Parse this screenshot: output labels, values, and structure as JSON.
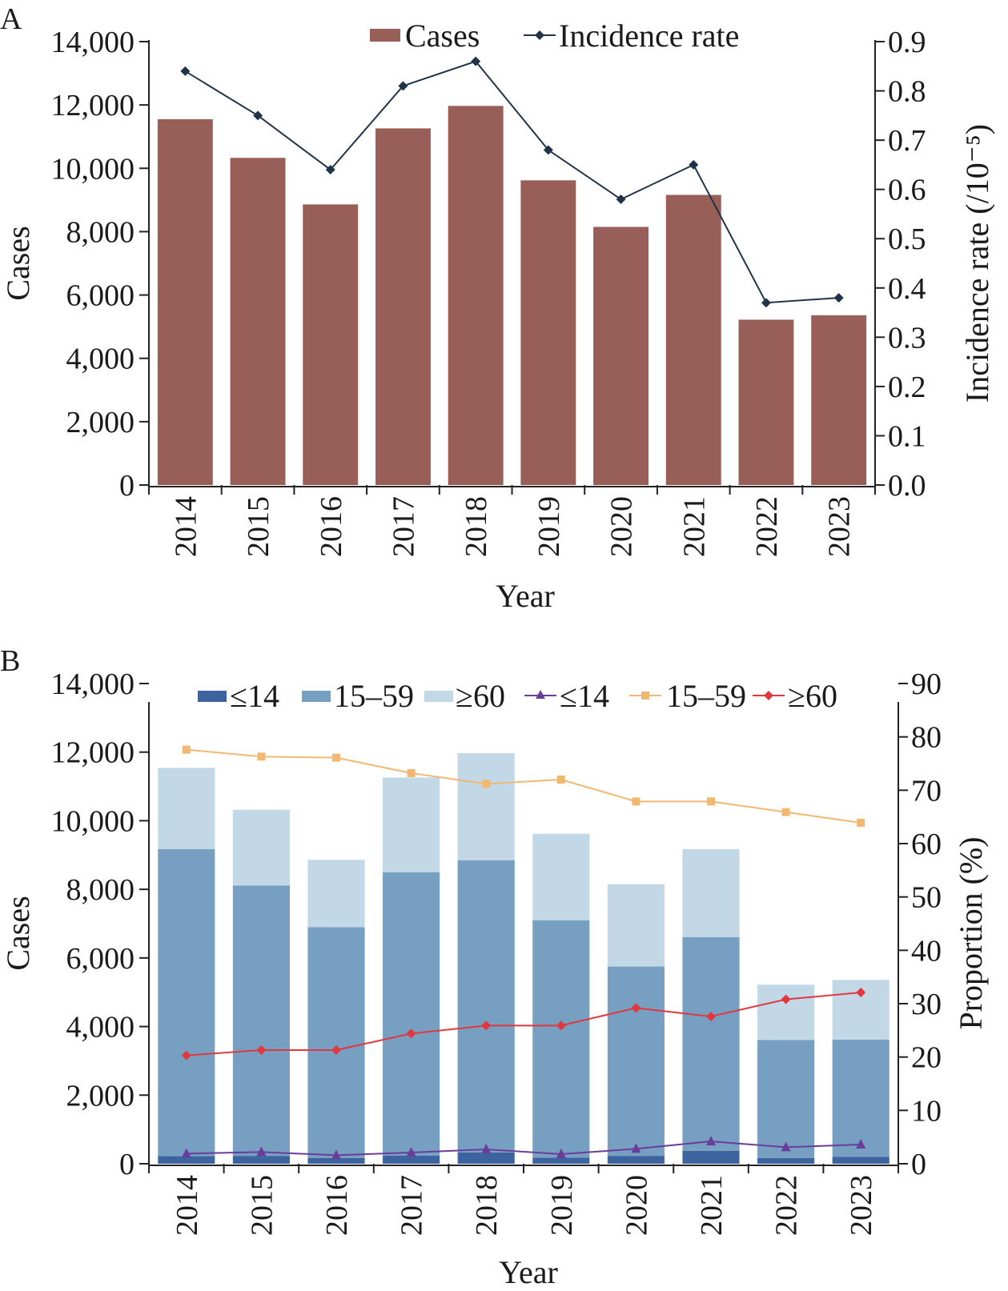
{
  "chart_data": [
    {
      "panel": "A",
      "type": "bar",
      "categories": [
        "2014",
        "2015",
        "2016",
        "2017",
        "2018",
        "2019",
        "2020",
        "2021",
        "2022",
        "2023"
      ],
      "series": [
        {
          "name": "Cases",
          "type": "bar",
          "axis": "left",
          "color": "#985e58",
          "values": [
            11550,
            10330,
            8860,
            11260,
            11970,
            9620,
            8150,
            9160,
            5220,
            5360
          ]
        },
        {
          "name": "Incidence rate",
          "type": "line",
          "axis": "right",
          "color": "#1f3448",
          "values": [
            0.84,
            0.75,
            0.64,
            0.81,
            0.86,
            0.68,
            0.58,
            0.65,
            0.37,
            0.38
          ]
        }
      ],
      "xlabel": "Year",
      "ylabel": "Cases",
      "y2label": "Incidence rate (/10⁻⁵)",
      "ylim": [
        0,
        14000
      ],
      "y2lim": [
        0,
        0.9
      ],
      "yticks": [
        "0",
        "2,000",
        "4,000",
        "6,000",
        "8,000",
        "10,000",
        "12,000",
        "14,000"
      ],
      "y2ticks": [
        "0.0",
        "0.1",
        "0.2",
        "0.3",
        "0.4",
        "0.5",
        "0.6",
        "0.7",
        "0.8",
        "0.9"
      ],
      "legend": "top-center"
    },
    {
      "panel": "B",
      "type": "bar",
      "categories": [
        "2014",
        "2015",
        "2016",
        "2017",
        "2018",
        "2019",
        "2020",
        "2021",
        "2022",
        "2023"
      ],
      "series": [
        {
          "name": "≤14",
          "type": "stacked-bar",
          "axis": "left",
          "color": "#3e64a0",
          "values": [
            220,
            230,
            170,
            240,
            330,
            180,
            230,
            380,
            170,
            200
          ]
        },
        {
          "name": "15–59",
          "type": "stacked-bar",
          "axis": "left",
          "color": "#769fc2",
          "values": [
            8950,
            7880,
            6730,
            8260,
            8520,
            6920,
            5520,
            6230,
            3440,
            3420
          ]
        },
        {
          "name": "≥60",
          "type": "stacked-bar",
          "axis": "left",
          "color": "#c2d8e7",
          "values": [
            2370,
            2210,
            1960,
            2760,
            3120,
            2520,
            2400,
            2560,
            1610,
            1740
          ]
        },
        {
          "name": "≤14",
          "type": "line",
          "axis": "right",
          "color": "#6a3d9a",
          "marker": "triangle",
          "values": [
            1.9,
            2.2,
            1.6,
            2.1,
            2.7,
            1.8,
            2.8,
            4.2,
            3.1,
            3.6
          ]
        },
        {
          "name": "15–59",
          "type": "line",
          "axis": "right",
          "color": "#f2b872",
          "marker": "square",
          "values": [
            77.6,
            76.3,
            76.1,
            73.2,
            71.2,
            72.0,
            67.9,
            67.9,
            65.9,
            63.9
          ]
        },
        {
          "name": "≥60",
          "type": "line",
          "axis": "right",
          "color": "#e0383e",
          "marker": "diamond",
          "values": [
            20.3,
            21.3,
            21.3,
            24.4,
            25.9,
            25.9,
            29.2,
            27.6,
            30.8,
            32.1
          ]
        }
      ],
      "xlabel": "Year",
      "ylabel": "Cases",
      "y2label": "Proportion (%)",
      "ylim": [
        0,
        14000
      ],
      "y2lim": [
        0,
        90
      ],
      "yticks": [
        "0",
        "2,000",
        "4,000",
        "6,000",
        "8,000",
        "10,000",
        "12,000",
        "14,000"
      ],
      "y2ticks": [
        "0",
        "10",
        "20",
        "30",
        "40",
        "50",
        "60",
        "70",
        "80",
        "90"
      ],
      "legend": "top-center"
    }
  ]
}
